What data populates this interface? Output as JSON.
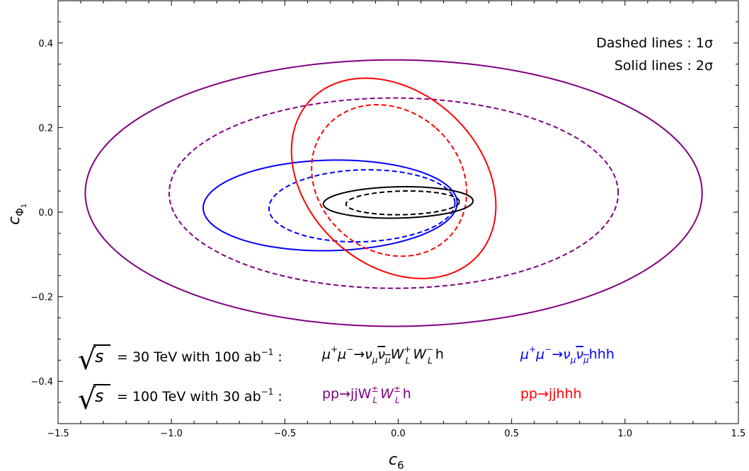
{
  "chart_data": {
    "type": "line",
    "xlabel": "c",
    "xlabel_sub": "6",
    "ylabel": "c",
    "ylabel_sub": "Φ",
    "ylabel_subsub": "1",
    "xlim": [
      -1.5,
      1.5
    ],
    "ylim": [
      -0.5,
      0.5
    ],
    "x_ticks": [
      -1.5,
      -1.0,
      -0.5,
      0.0,
      0.5,
      1.0,
      1.5
    ],
    "x_tick_labels": [
      "−1.5",
      "−1.0",
      "−0.5",
      "0.0",
      "0.5",
      "1.0",
      "1.5"
    ],
    "y_ticks": [
      -0.4,
      -0.2,
      0.0,
      0.2,
      0.4
    ],
    "y_tick_labels": [
      "−0.4",
      "−0.2",
      "0.0",
      "0.2",
      "0.4"
    ],
    "grid": false,
    "notes": [
      "Dashed lines : 1σ",
      "Solid lines : 2σ"
    ],
    "series": [
      {
        "color": "#800080",
        "style": "solid",
        "shape": "ellipse",
        "center": [
          -0.02,
          0.045
        ],
        "semi_axes": [
          1.36,
          0.315
        ],
        "tilt_deg": 0
      },
      {
        "color": "#800080",
        "style": "dashed",
        "shape": "ellipse",
        "center": [
          -0.02,
          0.045
        ],
        "semi_axes": [
          0.99,
          0.225
        ],
        "tilt_deg": 0
      },
      {
        "color": "#0000ff",
        "style": "solid",
        "shape": "ellipse",
        "center": [
          -0.3,
          0.016
        ],
        "semi_axes": [
          0.56,
          0.107
        ],
        "tilt_deg": 1.3
      },
      {
        "color": "#0000ff",
        "style": "dashed",
        "shape": "ellipse",
        "center": [
          -0.16,
          0.015
        ],
        "semi_axes": [
          0.41,
          0.085
        ],
        "tilt_deg": 1.8
      },
      {
        "color": "#ff0000",
        "style": "solid",
        "shape": "ellipse",
        "center": [
          -0.02,
          0.08
        ],
        "semi_axes": [
          0.38,
          0.27
        ],
        "tilt_deg": 47
      },
      {
        "color": "#ff0000",
        "style": "dashed",
        "shape": "ellipse",
        "center": [
          -0.04,
          0.075
        ],
        "semi_axes": [
          0.31,
          0.195
        ],
        "tilt_deg": 49
      },
      {
        "color": "#000000",
        "style": "solid",
        "shape": "ellipse",
        "center": [
          0.0,
          0.023
        ],
        "semi_axes": [
          0.33,
          0.037
        ],
        "tilt_deg": 1.2
      },
      {
        "color": "#000000",
        "style": "dashed",
        "shape": "ellipse",
        "center": [
          0.02,
          0.022
        ],
        "semi_axes": [
          0.25,
          0.028
        ],
        "tilt_deg": 1.2
      }
    ],
    "legend": {
      "row1_energy": "= 30 TeV with 100 ab",
      "row1_sup": "−1",
      "row1_colon": " :",
      "row2_energy": "= 100 TeV with 30 ab",
      "row2_sup": "−1",
      "row2_colon": " :",
      "sqrt_symbol": "√",
      "s_symbol": "s",
      "colors": {
        "black": "#000000",
        "blue": "#0000ff",
        "purple": "#800080",
        "red": "#ff0000"
      },
      "proc_mu_wwh": {
        "a": "μ",
        "a_sup": "+",
        "b": "μ",
        "b_sup": "−",
        "arrow": "→",
        "c": "ν",
        "c_sub": "μ",
        "d": "ν",
        "d_sub": "μ",
        "e": "W",
        "e_sup": "+",
        "e_sub": "L",
        "f": "W",
        "f_sup": "−",
        "f_sub": "L",
        "g": "h"
      },
      "proc_mu_hhh": {
        "a": "μ",
        "a_sup": "+",
        "b": "μ",
        "b_sup": "−",
        "arrow": "→",
        "c": "ν",
        "c_sub": "μ",
        "d": "ν",
        "d_sub": "μ",
        "g": "hhh"
      },
      "proc_pp_wwh": {
        "a": "pp→jjW",
        "a_sup": "±",
        "a_sub": "L",
        "b": "W",
        "b_sup": "±",
        "b_sub": "L",
        "g": "h"
      },
      "proc_pp_hhh": "pp→jjhhh"
    }
  }
}
